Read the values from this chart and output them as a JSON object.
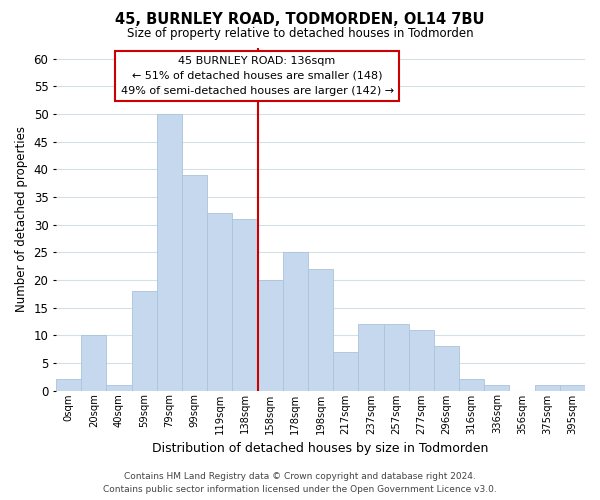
{
  "title": "45, BURNLEY ROAD, TODMORDEN, OL14 7BU",
  "subtitle": "Size of property relative to detached houses in Todmorden",
  "xlabel": "Distribution of detached houses by size in Todmorden",
  "ylabel": "Number of detached properties",
  "bar_labels": [
    "0sqm",
    "20sqm",
    "40sqm",
    "59sqm",
    "79sqm",
    "99sqm",
    "119sqm",
    "138sqm",
    "158sqm",
    "178sqm",
    "198sqm",
    "217sqm",
    "237sqm",
    "257sqm",
    "277sqm",
    "296sqm",
    "316sqm",
    "336sqm",
    "356sqm",
    "375sqm",
    "395sqm"
  ],
  "bar_values": [
    2,
    10,
    1,
    18,
    50,
    39,
    32,
    31,
    20,
    25,
    22,
    7,
    12,
    12,
    11,
    8,
    2,
    1,
    0,
    1,
    1
  ],
  "bar_color": "#c5d8ed",
  "bar_edge_color": "#a8c4dd",
  "vline_color": "#cc0000",
  "annotation_lines": [
    "45 BURNLEY ROAD: 136sqm",
    "← 51% of detached houses are smaller (148)",
    "49% of semi-detached houses are larger (142) →"
  ],
  "ylim": [
    0,
    62
  ],
  "yticks": [
    0,
    5,
    10,
    15,
    20,
    25,
    30,
    35,
    40,
    45,
    50,
    55,
    60
  ],
  "footer_line1": "Contains HM Land Registry data © Crown copyright and database right 2024.",
  "footer_line2": "Contains public sector information licensed under the Open Government Licence v3.0.",
  "background_color": "#ffffff",
  "grid_color": "#d4dfe8"
}
